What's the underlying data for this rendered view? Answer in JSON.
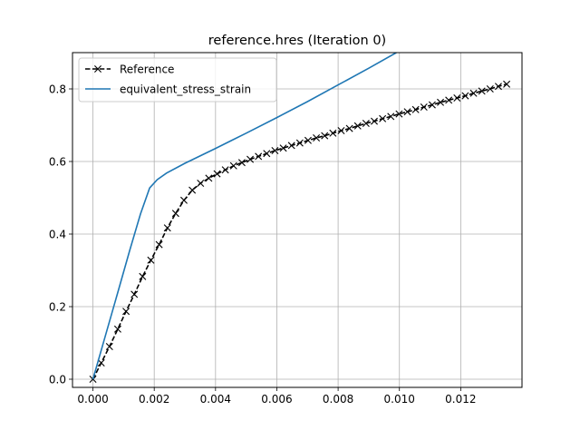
{
  "chart_data": {
    "type": "line",
    "title": "reference.hres (Iteration 0)",
    "xlabel": "",
    "ylabel": "",
    "xlim": [
      -0.000667,
      0.014
    ],
    "ylim": [
      -0.0225,
      0.9
    ],
    "xticks": [
      0.0,
      0.002,
      0.004,
      0.006,
      0.008,
      0.01,
      0.012
    ],
    "xtick_labels": [
      "0.000",
      "0.002",
      "0.004",
      "0.006",
      "0.008",
      "0.010",
      "0.012"
    ],
    "yticks": [
      0.0,
      0.2,
      0.4,
      0.6,
      0.8
    ],
    "ytick_labels": [
      "0.0",
      "0.2",
      "0.4",
      "0.6",
      "0.8"
    ],
    "grid": true,
    "legend_position": "top-left",
    "series": [
      {
        "name": "Reference",
        "color": "#000000",
        "line_style": "dashed",
        "marker": "x",
        "x": [
          0.0,
          0.00027,
          0.00054,
          0.00081,
          0.00108,
          0.00135,
          0.00162,
          0.00189,
          0.00216,
          0.00243,
          0.0027,
          0.00297,
          0.00324,
          0.00351,
          0.00378,
          0.00405,
          0.00432,
          0.00459,
          0.00486,
          0.00513,
          0.0054,
          0.00567,
          0.00594,
          0.00621,
          0.00648,
          0.00675,
          0.00702,
          0.00729,
          0.00756,
          0.00783,
          0.0081,
          0.00837,
          0.00864,
          0.00891,
          0.00918,
          0.00945,
          0.00972,
          0.00999,
          0.01026,
          0.01053,
          0.0108,
          0.01107,
          0.01134,
          0.01161,
          0.01188,
          0.01215,
          0.01242,
          0.01269,
          0.01296,
          0.01323,
          0.0135
        ],
        "y": [
          0.0,
          0.045,
          0.09,
          0.138,
          0.187,
          0.234,
          0.283,
          0.328,
          0.371,
          0.417,
          0.457,
          0.493,
          0.521,
          0.54,
          0.554,
          0.566,
          0.577,
          0.588,
          0.597,
          0.606,
          0.614,
          0.622,
          0.63,
          0.637,
          0.644,
          0.651,
          0.658,
          0.665,
          0.671,
          0.678,
          0.685,
          0.691,
          0.698,
          0.705,
          0.711,
          0.718,
          0.724,
          0.731,
          0.737,
          0.743,
          0.75,
          0.756,
          0.763,
          0.769,
          0.775,
          0.781,
          0.788,
          0.794,
          0.8,
          0.807,
          0.813
        ]
      },
      {
        "name": "equivalent_stress_strain",
        "color": "#1f77b4",
        "line_style": "solid",
        "marker": "",
        "x": [
          0.0,
          0.0004,
          0.0008,
          0.0012,
          0.00155,
          0.00185,
          0.0021,
          0.0024,
          0.003,
          0.004,
          0.005,
          0.006,
          0.007,
          0.008,
          0.009,
          0.0099
        ],
        "y": [
          0.0,
          0.118,
          0.236,
          0.355,
          0.455,
          0.527,
          0.55,
          0.568,
          0.595,
          0.636,
          0.678,
          0.721,
          0.765,
          0.811,
          0.857,
          0.9
        ]
      }
    ]
  }
}
